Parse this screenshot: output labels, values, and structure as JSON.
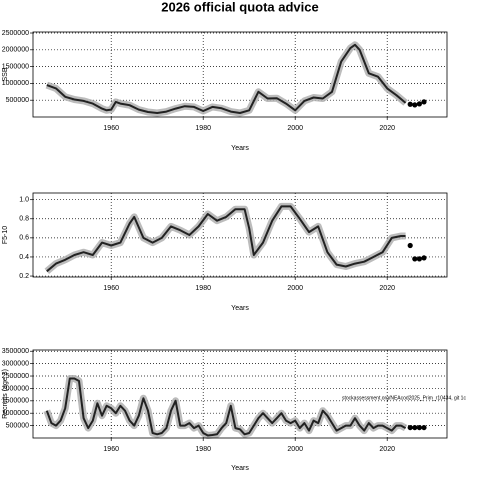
{
  "title": "2026 official quota advice",
  "chart_data": [
    {
      "type": "line",
      "xlabel": "Years",
      "ylabel": "SSB",
      "color": "#222222",
      "band_color": "#b0b0b0",
      "x": [
        1946,
        1948,
        1950,
        1952,
        1954,
        1956,
        1958,
        1959,
        1960,
        1961,
        1962,
        1964,
        1966,
        1968,
        1970,
        1972,
        1974,
        1976,
        1978,
        1980,
        1982,
        1984,
        1986,
        1988,
        1990,
        1992,
        1994,
        1996,
        1998,
        2000,
        2002,
        2004,
        2006,
        2008,
        2010,
        2012,
        2013,
        2014,
        2016,
        2018,
        2020,
        2022,
        2024
      ],
      "values": [
        950000,
        850000,
        600000,
        520000,
        480000,
        400000,
        250000,
        200000,
        220000,
        450000,
        400000,
        350000,
        220000,
        150000,
        120000,
        160000,
        250000,
        320000,
        300000,
        180000,
        300000,
        260000,
        160000,
        120000,
        200000,
        750000,
        550000,
        560000,
        400000,
        200000,
        480000,
        580000,
        550000,
        750000,
        1650000,
        2050000,
        2150000,
        2000000,
        1300000,
        1200000,
        850000,
        650000,
        420000
      ],
      "points": {
        "x": [
          2025,
          2026,
          2027,
          2028
        ],
        "values": [
          380000,
          360000,
          390000,
          450000
        ]
      },
      "xlim": [
        1943,
        2033
      ],
      "ylim": [
        0,
        2530000
      ],
      "xticks": [
        1960,
        1980,
        2000,
        2020
      ],
      "yticks": [
        500000,
        1000000,
        1500000,
        2000000,
        2500000
      ],
      "grid": true
    },
    {
      "type": "line",
      "xlabel": "Years",
      "ylabel": "F5-10",
      "color": "#222222",
      "band_color": "#b0b0b0",
      "x": [
        1946,
        1948,
        1950,
        1952,
        1954,
        1956,
        1958,
        1960,
        1962,
        1964,
        1965,
        1967,
        1969,
        1971,
        1973,
        1975,
        1977,
        1979,
        1981,
        1983,
        1985,
        1987,
        1989,
        1990,
        1991,
        1993,
        1995,
        1997,
        1999,
        2001,
        2003,
        2005,
        2007,
        2009,
        2011,
        2013,
        2015,
        2017,
        2019,
        2021,
        2023,
        2024
      ],
      "values": [
        0.25,
        0.33,
        0.37,
        0.42,
        0.45,
        0.42,
        0.55,
        0.52,
        0.55,
        0.75,
        0.82,
        0.6,
        0.55,
        0.6,
        0.72,
        0.68,
        0.63,
        0.72,
        0.85,
        0.78,
        0.82,
        0.9,
        0.9,
        0.7,
        0.42,
        0.55,
        0.78,
        0.93,
        0.93,
        0.8,
        0.66,
        0.72,
        0.45,
        0.32,
        0.3,
        0.33,
        0.35,
        0.4,
        0.45,
        0.6,
        0.62,
        0.62
      ],
      "points": {
        "x": [
          2025,
          2026,
          2027,
          2028
        ],
        "values": [
          0.52,
          0.38,
          0.38,
          0.39
        ]
      },
      "xlim": [
        1943,
        2033
      ],
      "ylim": [
        0.19,
        1.07
      ],
      "xticks": [
        1960,
        1980,
        2000,
        2020
      ],
      "yticks": [
        0.2,
        0.4,
        0.6,
        0.8,
        {
          "value": 1,
          "label": "1.0"
        }
      ],
      "grid": true
    },
    {
      "type": "line",
      "xlabel": "Years",
      "ylabel": "Recruits (age 3)",
      "color": "#222222",
      "band_color": "#b0b0b0",
      "annotation": "stockassessment.org/NEAcod2025_Prim_r10434, git 1c",
      "x": [
        1946,
        1947,
        1948,
        1949,
        1950,
        1951,
        1952,
        1953,
        1954,
        1955,
        1956,
        1957,
        1958,
        1959,
        1960,
        1961,
        1962,
        1963,
        1964,
        1965,
        1966,
        1967,
        1968,
        1969,
        1970,
        1971,
        1972,
        1973,
        1974,
        1975,
        1976,
        1977,
        1978,
        1979,
        1980,
        1981,
        1982,
        1983,
        1984,
        1985,
        1986,
        1987,
        1988,
        1989,
        1990,
        1991,
        1992,
        1993,
        1994,
        1995,
        1996,
        1997,
        1998,
        1999,
        2000,
        2001,
        2002,
        2003,
        2004,
        2005,
        2006,
        2007,
        2008,
        2009,
        2010,
        2011,
        2012,
        2013,
        2014,
        2015,
        2016,
        2017,
        2018,
        2019,
        2020,
        2021,
        2022,
        2023,
        2024
      ],
      "values": [
        1100000,
        600000,
        500000,
        700000,
        1200000,
        2400000,
        2400000,
        2300000,
        800000,
        400000,
        700000,
        1400000,
        900000,
        1300000,
        1200000,
        1000000,
        1300000,
        1100000,
        700000,
        500000,
        900000,
        1600000,
        1100000,
        200000,
        150000,
        200000,
        400000,
        1100000,
        1500000,
        500000,
        500000,
        600000,
        400000,
        500000,
        200000,
        100000,
        120000,
        150000,
        400000,
        600000,
        1300000,
        400000,
        350000,
        150000,
        200000,
        500000,
        800000,
        1000000,
        800000,
        600000,
        800000,
        1000000,
        700000,
        600000,
        700000,
        400000,
        600000,
        300000,
        700000,
        600000,
        1100000,
        900000,
        600000,
        300000,
        400000,
        500000,
        500000,
        800000,
        500000,
        300000,
        600000,
        400000,
        500000,
        500000,
        400000,
        300000,
        500000,
        500000,
        400000
      ],
      "points": {
        "x": [
          2025,
          2026,
          2027,
          2028
        ],
        "values": [
          420000,
          420000,
          420000,
          420000
        ]
      },
      "xlim": [
        1943,
        2033
      ],
      "ylim": [
        0,
        3550000
      ],
      "xticks": [
        1960,
        1980,
        2000,
        2020
      ],
      "yticks": [
        500000,
        1000000,
        1500000,
        2000000,
        2500000,
        3000000,
        3500000
      ],
      "grid": true
    }
  ]
}
